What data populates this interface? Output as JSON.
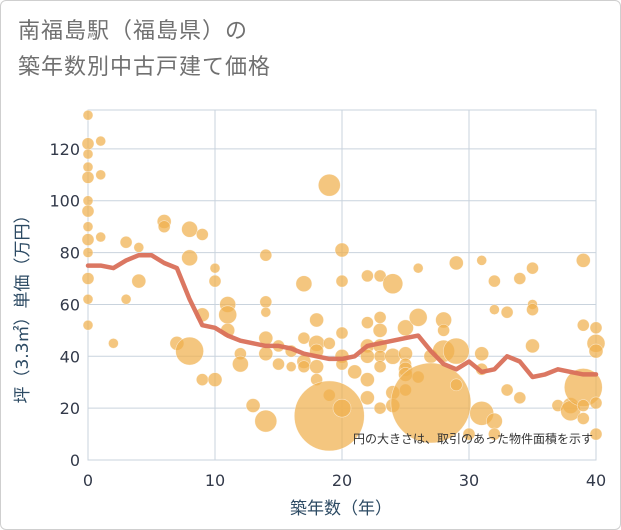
{
  "title_line1": "南福島駅（福島県）の",
  "title_line2": "築年数別中古戸建て価格",
  "colors": {
    "bubble": "#F0B04D",
    "line": "#D9705A",
    "grid": "#c9d3dd",
    "axis_text": "#2c4a63"
  },
  "chart_data": {
    "type": "scatter",
    "title": "南福島駅（福島県）の築年数別中古戸建て価格",
    "xlabel": "築年数（年）",
    "ylabel": "坪（3.3㎡）単価（万円）",
    "xlim": [
      0,
      40
    ],
    "ylim": [
      0,
      135
    ],
    "xticks": [
      0,
      10,
      20,
      30,
      40
    ],
    "yticks": [
      0,
      20,
      40,
      60,
      80,
      100,
      120
    ],
    "note": "円の大きさは、取引のあった物件面積を示す",
    "trend_line": {
      "x": [
        0,
        1,
        2,
        3,
        4,
        5,
        6,
        7,
        8,
        9,
        10,
        11,
        12,
        13,
        14,
        15,
        16,
        17,
        18,
        19,
        20,
        21,
        22,
        23,
        24,
        25,
        26,
        27,
        28,
        29,
        30,
        31,
        32,
        33,
        34,
        35,
        36,
        37,
        38,
        39,
        40
      ],
      "y": [
        75,
        75,
        74,
        77,
        79,
        79,
        76,
        74,
        62,
        52,
        51,
        48,
        46,
        45,
        44,
        44,
        43,
        41,
        40,
        39,
        39,
        40,
        44,
        45,
        46,
        47,
        48,
        42,
        37,
        35,
        38,
        34,
        35,
        40,
        38,
        32,
        33,
        35,
        34,
        33,
        33
      ]
    },
    "points": [
      {
        "x": 0,
        "y": 133,
        "s": 5
      },
      {
        "x": 0,
        "y": 122,
        "s": 6
      },
      {
        "x": 0,
        "y": 118,
        "s": 5
      },
      {
        "x": 0,
        "y": 113,
        "s": 5
      },
      {
        "x": 0,
        "y": 109,
        "s": 6
      },
      {
        "x": 0,
        "y": 100,
        "s": 5
      },
      {
        "x": 0,
        "y": 96,
        "s": 6
      },
      {
        "x": 0,
        "y": 90,
        "s": 5
      },
      {
        "x": 0,
        "y": 85,
        "s": 6
      },
      {
        "x": 0,
        "y": 80,
        "s": 5
      },
      {
        "x": 0,
        "y": 70,
        "s": 6
      },
      {
        "x": 0,
        "y": 62,
        "s": 5
      },
      {
        "x": 0,
        "y": 52,
        "s": 5
      },
      {
        "x": 1,
        "y": 123,
        "s": 5
      },
      {
        "x": 1,
        "y": 110,
        "s": 5
      },
      {
        "x": 1,
        "y": 86,
        "s": 5
      },
      {
        "x": 2,
        "y": 45,
        "s": 5
      },
      {
        "x": 3,
        "y": 84,
        "s": 6
      },
      {
        "x": 3,
        "y": 62,
        "s": 5
      },
      {
        "x": 4,
        "y": 82,
        "s": 5
      },
      {
        "x": 4,
        "y": 69,
        "s": 7
      },
      {
        "x": 6,
        "y": 92,
        "s": 7
      },
      {
        "x": 6,
        "y": 90,
        "s": 6
      },
      {
        "x": 7,
        "y": 45,
        "s": 7
      },
      {
        "x": 8,
        "y": 89,
        "s": 8
      },
      {
        "x": 8,
        "y": 78,
        "s": 8
      },
      {
        "x": 8,
        "y": 42,
        "s": 14
      },
      {
        "x": 9,
        "y": 87,
        "s": 6
      },
      {
        "x": 9,
        "y": 56,
        "s": 7
      },
      {
        "x": 9,
        "y": 31,
        "s": 6
      },
      {
        "x": 10,
        "y": 74,
        "s": 5
      },
      {
        "x": 10,
        "y": 69,
        "s": 6
      },
      {
        "x": 10,
        "y": 31,
        "s": 7
      },
      {
        "x": 11,
        "y": 60,
        "s": 8
      },
      {
        "x": 11,
        "y": 56,
        "s": 9
      },
      {
        "x": 11,
        "y": 50,
        "s": 7
      },
      {
        "x": 12,
        "y": 41,
        "s": 6
      },
      {
        "x": 12,
        "y": 37,
        "s": 8
      },
      {
        "x": 13,
        "y": 21,
        "s": 7
      },
      {
        "x": 14,
        "y": 79,
        "s": 6
      },
      {
        "x": 14,
        "y": 61,
        "s": 6
      },
      {
        "x": 14,
        "y": 57,
        "s": 5
      },
      {
        "x": 14,
        "y": 47,
        "s": 7
      },
      {
        "x": 14,
        "y": 41,
        "s": 7
      },
      {
        "x": 14,
        "y": 15,
        "s": 11
      },
      {
        "x": 15,
        "y": 44,
        "s": 6
      },
      {
        "x": 15,
        "y": 37,
        "s": 6
      },
      {
        "x": 16,
        "y": 42,
        "s": 6
      },
      {
        "x": 16,
        "y": 36,
        "s": 5
      },
      {
        "x": 17,
        "y": 68,
        "s": 8
      },
      {
        "x": 17,
        "y": 47,
        "s": 6
      },
      {
        "x": 17,
        "y": 38,
        "s": 7
      },
      {
        "x": 17,
        "y": 36,
        "s": 6
      },
      {
        "x": 18,
        "y": 54,
        "s": 7
      },
      {
        "x": 18,
        "y": 45,
        "s": 8
      },
      {
        "x": 18,
        "y": 42,
        "s": 7
      },
      {
        "x": 18,
        "y": 36,
        "s": 7
      },
      {
        "x": 18,
        "y": 31,
        "s": 6
      },
      {
        "x": 19,
        "y": 106,
        "s": 11
      },
      {
        "x": 19,
        "y": 45,
        "s": 6
      },
      {
        "x": 19,
        "y": 25,
        "s": 6
      },
      {
        "x": 19,
        "y": 17,
        "s": 35
      },
      {
        "x": 20,
        "y": 81,
        "s": 7
      },
      {
        "x": 20,
        "y": 69,
        "s": 6
      },
      {
        "x": 20,
        "y": 49,
        "s": 6
      },
      {
        "x": 20,
        "y": 40,
        "s": 7
      },
      {
        "x": 20,
        "y": 37,
        "s": 6
      },
      {
        "x": 20,
        "y": 20,
        "s": 9
      },
      {
        "x": 21,
        "y": 34,
        "s": 7
      },
      {
        "x": 22,
        "y": 71,
        "s": 6
      },
      {
        "x": 22,
        "y": 53,
        "s": 6
      },
      {
        "x": 22,
        "y": 44,
        "s": 7
      },
      {
        "x": 22,
        "y": 40,
        "s": 7
      },
      {
        "x": 22,
        "y": 31,
        "s": 7
      },
      {
        "x": 22,
        "y": 24,
        "s": 7
      },
      {
        "x": 23,
        "y": 71,
        "s": 6
      },
      {
        "x": 23,
        "y": 55,
        "s": 6
      },
      {
        "x": 23,
        "y": 50,
        "s": 7
      },
      {
        "x": 23,
        "y": 44,
        "s": 7
      },
      {
        "x": 23,
        "y": 40,
        "s": 6
      },
      {
        "x": 23,
        "y": 36,
        "s": 6
      },
      {
        "x": 23,
        "y": 20,
        "s": 6
      },
      {
        "x": 24,
        "y": 68,
        "s": 10
      },
      {
        "x": 24,
        "y": 40,
        "s": 8
      },
      {
        "x": 24,
        "y": 26,
        "s": 7
      },
      {
        "x": 24,
        "y": 21,
        "s": 7
      },
      {
        "x": 25,
        "y": 51,
        "s": 8
      },
      {
        "x": 25,
        "y": 41,
        "s": 7
      },
      {
        "x": 25,
        "y": 37,
        "s": 6
      },
      {
        "x": 25,
        "y": 35,
        "s": 7
      },
      {
        "x": 25,
        "y": 33,
        "s": 7
      },
      {
        "x": 25,
        "y": 27,
        "s": 6
      },
      {
        "x": 26,
        "y": 74,
        "s": 5
      },
      {
        "x": 26,
        "y": 55,
        "s": 9
      },
      {
        "x": 26,
        "y": 32,
        "s": 6
      },
      {
        "x": 27,
        "y": 40,
        "s": 7
      },
      {
        "x": 27,
        "y": 22,
        "s": 40
      },
      {
        "x": 28,
        "y": 54,
        "s": 8
      },
      {
        "x": 28,
        "y": 50,
        "s": 6
      },
      {
        "x": 28,
        "y": 42,
        "s": 11
      },
      {
        "x": 29,
        "y": 76,
        "s": 7
      },
      {
        "x": 29,
        "y": 42,
        "s": 13
      },
      {
        "x": 29,
        "y": 29,
        "s": 6
      },
      {
        "x": 30,
        "y": 10,
        "s": 6
      },
      {
        "x": 31,
        "y": 77,
        "s": 5
      },
      {
        "x": 31,
        "y": 41,
        "s": 7
      },
      {
        "x": 31,
        "y": 35,
        "s": 6
      },
      {
        "x": 31,
        "y": 18,
        "s": 12
      },
      {
        "x": 32,
        "y": 69,
        "s": 6
      },
      {
        "x": 32,
        "y": 58,
        "s": 5
      },
      {
        "x": 32,
        "y": 15,
        "s": 8
      },
      {
        "x": 32,
        "y": 10,
        "s": 6
      },
      {
        "x": 33,
        "y": 57,
        "s": 6
      },
      {
        "x": 33,
        "y": 27,
        "s": 6
      },
      {
        "x": 34,
        "y": 70,
        "s": 6
      },
      {
        "x": 34,
        "y": 24,
        "s": 6
      },
      {
        "x": 35,
        "y": 74,
        "s": 6
      },
      {
        "x": 35,
        "y": 60,
        "s": 5
      },
      {
        "x": 35,
        "y": 58,
        "s": 6
      },
      {
        "x": 35,
        "y": 44,
        "s": 7
      },
      {
        "x": 37,
        "y": 21,
        "s": 6
      },
      {
        "x": 38,
        "y": 21,
        "s": 8
      },
      {
        "x": 38,
        "y": 19,
        "s": 10
      },
      {
        "x": 39,
        "y": 77,
        "s": 7
      },
      {
        "x": 39,
        "y": 52,
        "s": 6
      },
      {
        "x": 39,
        "y": 28,
        "s": 19
      },
      {
        "x": 39,
        "y": 21,
        "s": 6
      },
      {
        "x": 39,
        "y": 16,
        "s": 6
      },
      {
        "x": 40,
        "y": 51,
        "s": 6
      },
      {
        "x": 40,
        "y": 45,
        "s": 9
      },
      {
        "x": 40,
        "y": 42,
        "s": 7
      },
      {
        "x": 40,
        "y": 22,
        "s": 6
      },
      {
        "x": 40,
        "y": 10,
        "s": 6
      }
    ]
  }
}
